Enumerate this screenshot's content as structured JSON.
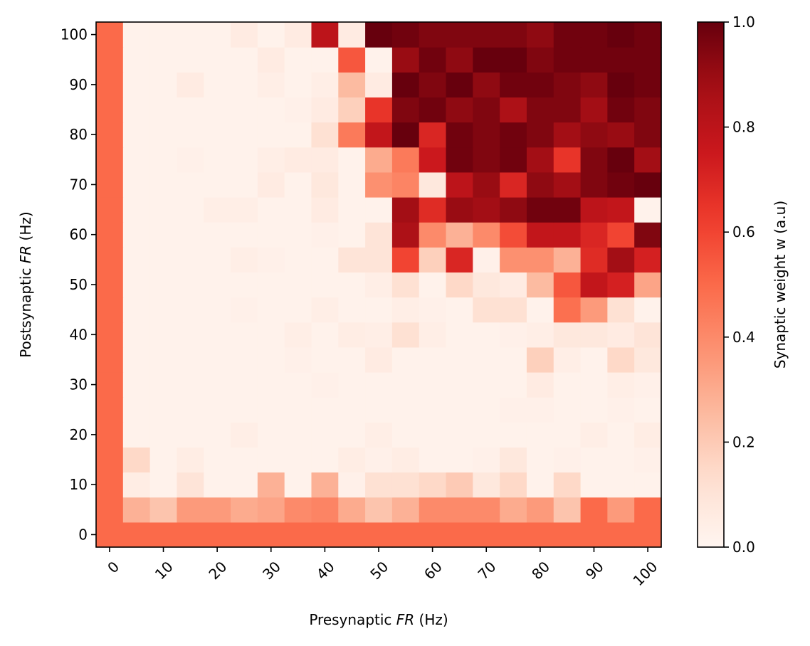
{
  "chart_data": {
    "type": "heatmap",
    "xlabel": "Presynaptic FR (Hz)",
    "xlabel_parts": [
      "Presynaptic ",
      "FR",
      " (Hz)"
    ],
    "ylabel": "Postsynaptic FR (Hz)",
    "ylabel_parts": [
      "Postsynaptic ",
      "FR",
      " (Hz)"
    ],
    "x_ticks": [
      "0",
      "10",
      "20",
      "30",
      "40",
      "50",
      "60",
      "70",
      "80",
      "90",
      "100"
    ],
    "y_ticks": [
      "0",
      "10",
      "20",
      "30",
      "40",
      "50",
      "60",
      "70",
      "80",
      "90",
      "100"
    ],
    "x_values": [
      0,
      5,
      10,
      15,
      20,
      25,
      30,
      35,
      40,
      45,
      50,
      55,
      60,
      65,
      70,
      75,
      80,
      85,
      90,
      95,
      100
    ],
    "y_values": [
      0,
      5,
      10,
      15,
      20,
      25,
      30,
      35,
      40,
      45,
      50,
      55,
      60,
      65,
      70,
      75,
      80,
      85,
      90,
      95,
      100
    ],
    "xlim": [
      -2.5,
      102.5
    ],
    "ylim": [
      -2.5,
      102.5
    ],
    "colormap": "Reds",
    "colorbar": {
      "label": "Synaptic weight w (a.u)",
      "range": [
        0.0,
        1.0
      ],
      "ticks": [
        "0.0",
        "0.2",
        "0.4",
        "0.6",
        "0.8",
        "1.0"
      ]
    },
    "grid": false,
    "values": [
      [
        0.5,
        0.5,
        0.5,
        0.5,
        0.5,
        0.5,
        0.5,
        0.5,
        0.5,
        0.5,
        0.5,
        0.5,
        0.5,
        0.5,
        0.5,
        0.5,
        0.5,
        0.5,
        0.5,
        0.5,
        0.5
      ],
      [
        0.5,
        0.28,
        0.22,
        0.35,
        0.35,
        0.3,
        0.32,
        0.4,
        0.42,
        0.3,
        0.22,
        0.28,
        0.4,
        0.4,
        0.4,
        0.3,
        0.35,
        0.22,
        0.5,
        0.35,
        0.5
      ],
      [
        0.5,
        0.05,
        0.02,
        0.1,
        0.02,
        0.02,
        0.28,
        0.02,
        0.28,
        0.03,
        0.12,
        0.12,
        0.15,
        0.2,
        0.08,
        0.15,
        0.02,
        0.15,
        0.02,
        0.02,
        0.02
      ],
      [
        0.5,
        0.15,
        0.02,
        0.05,
        0.02,
        0.02,
        0.02,
        0.02,
        0.02,
        0.05,
        0.03,
        0.05,
        0.02,
        0.02,
        0.03,
        0.08,
        0.02,
        0.03,
        0.02,
        0.02,
        0.03
      ],
      [
        0.5,
        0.02,
        0.02,
        0.02,
        0.02,
        0.04,
        0.02,
        0.02,
        0.02,
        0.02,
        0.04,
        0.02,
        0.02,
        0.02,
        0.02,
        0.02,
        0.02,
        0.02,
        0.04,
        0.02,
        0.05
      ],
      [
        0.5,
        0.02,
        0.02,
        0.02,
        0.02,
        0.02,
        0.02,
        0.02,
        0.02,
        0.02,
        0.02,
        0.02,
        0.02,
        0.02,
        0.02,
        0.03,
        0.03,
        0.02,
        0.02,
        0.03,
        0.02
      ],
      [
        0.5,
        0.02,
        0.02,
        0.02,
        0.02,
        0.02,
        0.02,
        0.02,
        0.03,
        0.02,
        0.02,
        0.02,
        0.02,
        0.02,
        0.02,
        0.02,
        0.06,
        0.02,
        0.02,
        0.04,
        0.03
      ],
      [
        0.5,
        0.02,
        0.02,
        0.02,
        0.02,
        0.02,
        0.02,
        0.03,
        0.02,
        0.02,
        0.06,
        0.02,
        0.02,
        0.02,
        0.02,
        0.02,
        0.18,
        0.04,
        0.02,
        0.15,
        0.08
      ],
      [
        0.5,
        0.02,
        0.02,
        0.02,
        0.02,
        0.02,
        0.02,
        0.04,
        0.02,
        0.05,
        0.04,
        0.12,
        0.04,
        0.02,
        0.02,
        0.03,
        0.04,
        0.08,
        0.08,
        0.06,
        0.1
      ],
      [
        0.5,
        0.02,
        0.02,
        0.02,
        0.02,
        0.03,
        0.02,
        0.02,
        0.04,
        0.02,
        0.02,
        0.04,
        0.03,
        0.02,
        0.12,
        0.12,
        0.02,
        0.48,
        0.35,
        0.12,
        0.02
      ],
      [
        0.5,
        0.02,
        0.02,
        0.02,
        0.02,
        0.02,
        0.02,
        0.02,
        0.02,
        0.02,
        0.04,
        0.12,
        0.02,
        0.15,
        0.08,
        0.06,
        0.25,
        0.55,
        0.78,
        0.72,
        0.32
      ],
      [
        0.5,
        0.02,
        0.02,
        0.02,
        0.02,
        0.04,
        0.03,
        0.02,
        0.02,
        0.1,
        0.1,
        0.6,
        0.18,
        0.7,
        0.03,
        0.38,
        0.38,
        0.28,
        0.68,
        0.88,
        0.72
      ],
      [
        0.5,
        0.02,
        0.02,
        0.02,
        0.02,
        0.02,
        0.02,
        0.02,
        0.03,
        0.02,
        0.1,
        0.85,
        0.4,
        0.28,
        0.4,
        0.58,
        0.78,
        0.78,
        0.7,
        0.6,
        0.95
      ],
      [
        0.5,
        0.02,
        0.02,
        0.02,
        0.04,
        0.04,
        0.02,
        0.02,
        0.06,
        0.02,
        0.02,
        0.88,
        0.68,
        0.9,
        0.88,
        0.92,
        0.98,
        0.98,
        0.8,
        0.78,
        0.02
      ],
      [
        0.5,
        0.02,
        0.02,
        0.02,
        0.02,
        0.02,
        0.06,
        0.02,
        0.08,
        0.02,
        0.38,
        0.42,
        0.08,
        0.8,
        0.9,
        0.7,
        0.92,
        0.88,
        0.95,
        0.98,
        1.0
      ],
      [
        0.5,
        0.02,
        0.02,
        0.03,
        0.02,
        0.02,
        0.04,
        0.06,
        0.06,
        0.02,
        0.3,
        0.45,
        0.75,
        0.98,
        0.95,
        0.98,
        0.88,
        0.65,
        0.95,
        1.0,
        0.88
      ],
      [
        0.5,
        0.02,
        0.02,
        0.02,
        0.02,
        0.02,
        0.02,
        0.02,
        0.12,
        0.45,
        0.78,
        1.0,
        0.7,
        0.98,
        0.95,
        0.98,
        0.95,
        0.88,
        0.92,
        0.9,
        0.95
      ],
      [
        0.5,
        0.02,
        0.02,
        0.02,
        0.02,
        0.02,
        0.02,
        0.03,
        0.06,
        0.18,
        0.65,
        0.95,
        0.98,
        0.92,
        0.95,
        0.85,
        0.95,
        0.95,
        0.88,
        0.98,
        0.95
      ],
      [
        0.5,
        0.02,
        0.02,
        0.06,
        0.02,
        0.02,
        0.04,
        0.02,
        0.04,
        0.25,
        0.06,
        1.0,
        0.95,
        1.0,
        0.92,
        0.98,
        0.98,
        0.95,
        0.92,
        1.0,
        0.98
      ],
      [
        0.5,
        0.02,
        0.02,
        0.02,
        0.02,
        0.02,
        0.06,
        0.02,
        0.02,
        0.55,
        0.02,
        0.9,
        0.98,
        0.92,
        1.0,
        1.0,
        0.95,
        0.98,
        0.98,
        0.98,
        0.98
      ],
      [
        0.5,
        0.02,
        0.02,
        0.02,
        0.02,
        0.06,
        0.02,
        0.06,
        0.8,
        0.06,
        1.0,
        0.98,
        0.95,
        0.95,
        0.95,
        0.95,
        0.92,
        0.98,
        0.98,
        1.0,
        0.98
      ]
    ]
  }
}
